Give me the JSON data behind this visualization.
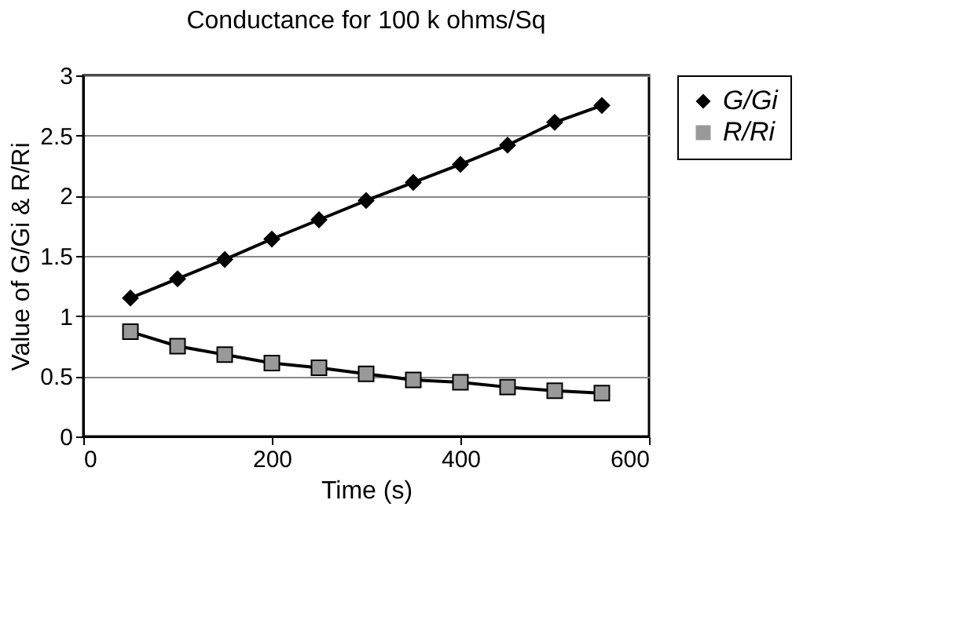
{
  "chart_data": {
    "type": "line",
    "title": "Conductance for 100 k ohms/Sq",
    "xlabel": "Time (s)",
    "ylabel": "Value of G/Gi & R/Ri",
    "x": [
      50,
      100,
      150,
      200,
      250,
      300,
      350,
      400,
      450,
      500,
      550
    ],
    "series": [
      {
        "name": "G/Gi",
        "color": "#000000",
        "marker": "diamond",
        "values": [
          1.15,
          1.31,
          1.47,
          1.64,
          1.8,
          1.96,
          2.11,
          2.26,
          2.42,
          2.61,
          2.75
        ]
      },
      {
        "name": "R/Ri",
        "color": "#000000",
        "marker": "square",
        "values": [
          0.87,
          0.75,
          0.68,
          0.61,
          0.57,
          0.52,
          0.47,
          0.45,
          0.41,
          0.38,
          0.36
        ]
      }
    ],
    "xlim": [
      0,
      600
    ],
    "xticks": [
      0,
      200,
      400,
      600
    ],
    "ylim": [
      0,
      3
    ],
    "yticks": [
      0,
      0.5,
      1,
      1.5,
      2,
      2.5,
      3
    ],
    "grid": "y",
    "legend": "right",
    "line_style": "solid"
  }
}
